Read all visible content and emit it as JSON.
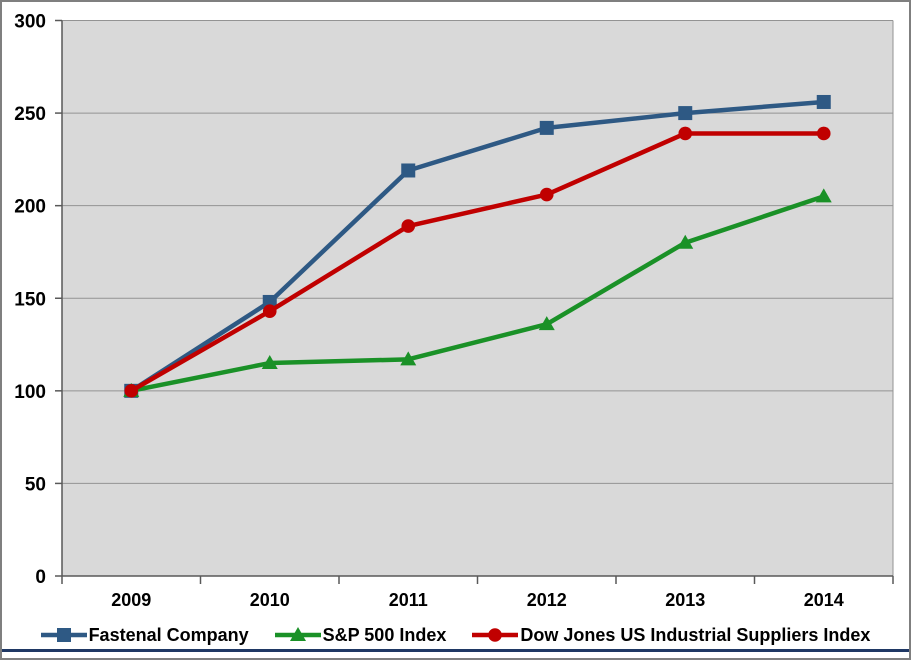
{
  "window": {
    "frame_border_color": "#7f7f7f",
    "bottom_rule_color": "#1f3864",
    "background_color": "#ffffff"
  },
  "chart_data": {
    "type": "line",
    "title": "",
    "xlabel": "",
    "ylabel": "",
    "categories": [
      "2009",
      "2010",
      "2011",
      "2012",
      "2013",
      "2014"
    ],
    "series": [
      {
        "name": "Fastenal Company",
        "values": [
          100,
          148,
          219,
          242,
          250,
          256
        ],
        "color": "#2e5984",
        "marker": "square"
      },
      {
        "name": "S&P 500 Index",
        "values": [
          100,
          115,
          117,
          136,
          180,
          205
        ],
        "color": "#1a9127",
        "marker": "triangle"
      },
      {
        "name": "Dow Jones US Industrial Suppliers Index",
        "values": [
          100,
          143,
          189,
          206,
          239,
          239
        ],
        "color": "#c00000",
        "marker": "circle"
      }
    ],
    "ylim": [
      0,
      300
    ],
    "ytick_interval": 50,
    "ytick_labels": [
      "0",
      "50",
      "100",
      "150",
      "200",
      "250",
      "300"
    ],
    "grid": true,
    "legend_position": "bottom",
    "plot_background": "#d9d9d9",
    "gridline_color": "#939393",
    "axis_color": "#595959",
    "text_color": "#000000"
  }
}
